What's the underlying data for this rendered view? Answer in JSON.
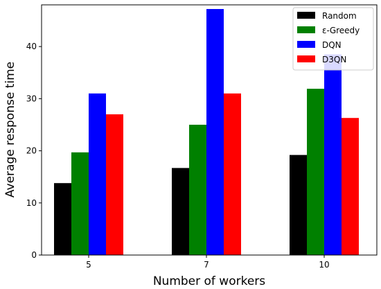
{
  "chart_data": {
    "type": "bar",
    "title": "",
    "xlabel": "Number of workers",
    "ylabel": "Average response time",
    "categories": [
      "5",
      "7",
      "10"
    ],
    "ylim": [
      0,
      48
    ],
    "yticks": [
      0,
      10,
      20,
      30,
      40
    ],
    "grid": false,
    "legend_position": "top-right",
    "series": [
      {
        "name": "Random",
        "color": "#000000",
        "values": [
          13.8,
          16.7,
          19.2
        ]
      },
      {
        "name": "ε-Greedy",
        "color": "#008000",
        "values": [
          19.7,
          25.0,
          31.9
        ]
      },
      {
        "name": "DQN",
        "color": "#0000ff",
        "values": [
          31.0,
          47.2,
          38.5
        ]
      },
      {
        "name": "D3QN",
        "color": "#ff0000",
        "values": [
          27.0,
          31.0,
          26.3
        ]
      }
    ]
  }
}
